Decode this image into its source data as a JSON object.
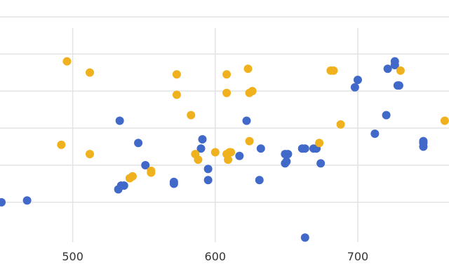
{
  "chart_data": {
    "type": "scatter",
    "title": "",
    "xlabel": "",
    "ylabel": "",
    "xlim": [
      449,
      764
    ],
    "ylim": [
      -1,
      4.7
    ],
    "x_ticks": [
      500,
      600,
      700
    ],
    "x_tick_labels": [
      "500",
      "600",
      "700"
    ],
    "y_gridlines": [
      0,
      1,
      2,
      3,
      4,
      5
    ],
    "y_tick_labels_visible": false,
    "grid": true,
    "legend": "none",
    "series": [
      {
        "color": "#4169c9",
        "points": [
          [
            450,
            0.0
          ],
          [
            468,
            0.05
          ],
          [
            532,
            0.35
          ],
          [
            534,
            0.45
          ],
          [
            536,
            0.45
          ],
          [
            546,
            1.6
          ],
          [
            533,
            2.2
          ],
          [
            551,
            1.0
          ],
          [
            571,
            0.5
          ],
          [
            571,
            0.55
          ],
          [
            590,
            1.45
          ],
          [
            591,
            1.7
          ],
          [
            595,
            0.9
          ],
          [
            595,
            0.6
          ],
          [
            617,
            1.25
          ],
          [
            622,
            2.2
          ],
          [
            631,
            0.6
          ],
          [
            632,
            1.45
          ],
          [
            649,
            1.05
          ],
          [
            650,
            1.1
          ],
          [
            649,
            1.3
          ],
          [
            651,
            1.3
          ],
          [
            661,
            1.45
          ],
          [
            663,
            1.45
          ],
          [
            669,
            1.45
          ],
          [
            671,
            1.45
          ],
          [
            674,
            1.05
          ],
          [
            663,
            -0.95
          ],
          [
            698,
            3.1
          ],
          [
            700,
            3.3
          ],
          [
            712,
            1.85
          ],
          [
            720,
            2.35
          ],
          [
            721,
            3.6
          ],
          [
            726,
            3.7
          ],
          [
            726,
            3.8
          ],
          [
            728,
            3.15
          ],
          [
            729,
            3.15
          ],
          [
            746,
            1.5
          ],
          [
            746,
            1.6
          ],
          [
            746,
            1.65
          ]
        ]
      },
      {
        "color": "#efb21e",
        "points": [
          [
            492,
            1.55
          ],
          [
            496,
            3.8
          ],
          [
            512,
            1.3
          ],
          [
            512,
            3.5
          ],
          [
            540,
            0.65
          ],
          [
            542,
            0.7
          ],
          [
            555,
            0.8
          ],
          [
            555,
            0.85
          ],
          [
            573,
            3.45
          ],
          [
            573,
            2.9
          ],
          [
            583,
            2.35
          ],
          [
            586,
            1.3
          ],
          [
            588,
            1.15
          ],
          [
            600,
            1.35
          ],
          [
            609,
            1.15
          ],
          [
            608,
            1.3
          ],
          [
            610,
            1.35
          ],
          [
            611,
            1.35
          ],
          [
            608,
            3.45
          ],
          [
            608,
            2.95
          ],
          [
            623,
            3.6
          ],
          [
            624,
            2.95
          ],
          [
            626,
            3.0
          ],
          [
            624,
            1.65
          ],
          [
            673,
            1.6
          ],
          [
            681,
            3.55
          ],
          [
            683,
            3.55
          ],
          [
            688,
            2.1
          ],
          [
            730,
            3.55
          ],
          [
            761,
            2.2
          ]
        ]
      }
    ]
  }
}
